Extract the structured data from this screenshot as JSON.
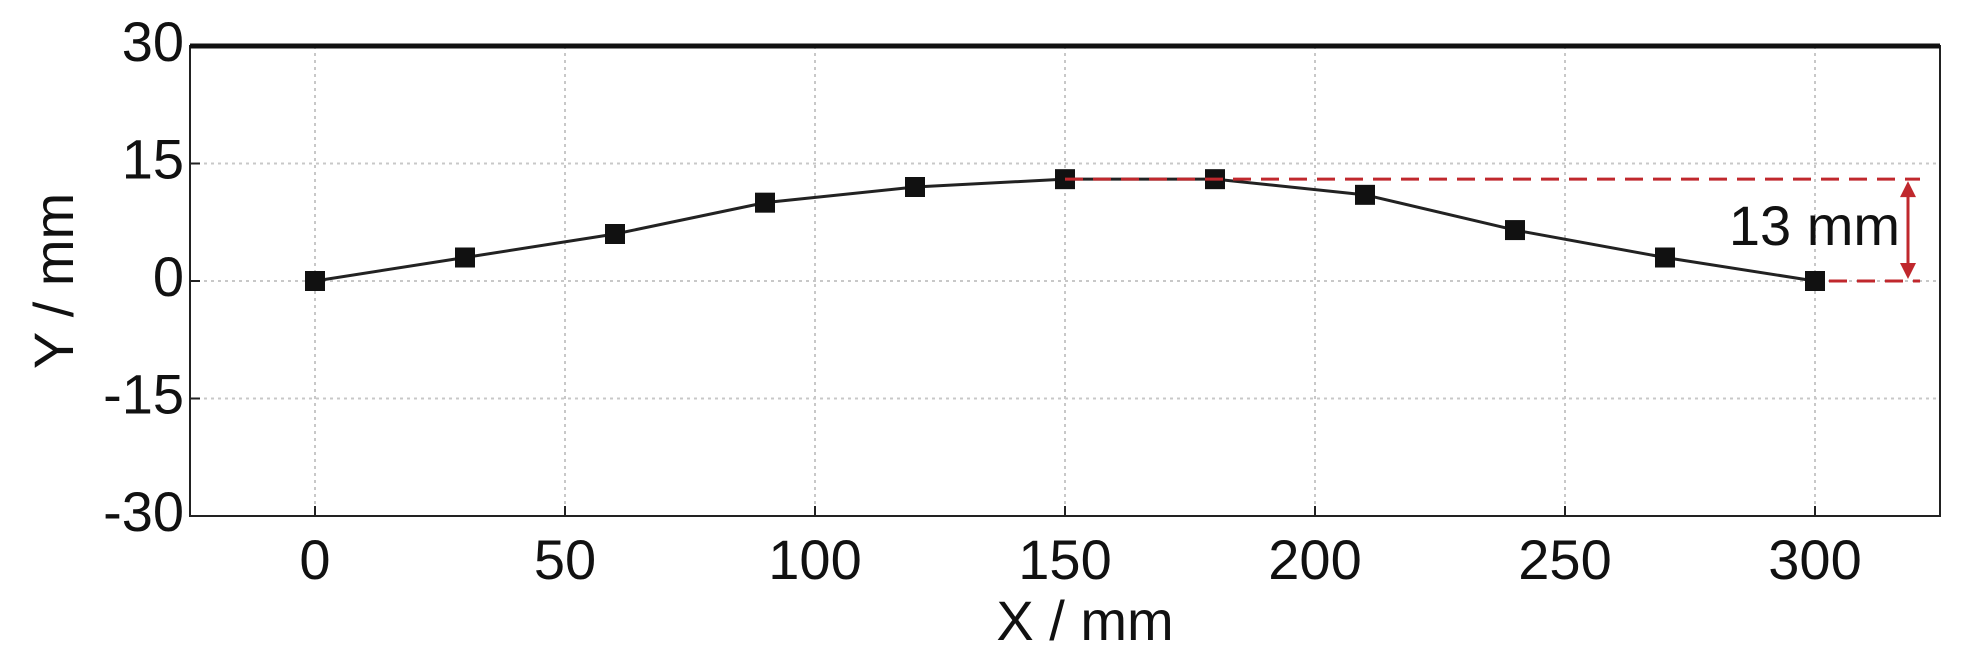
{
  "chart_data": {
    "type": "line",
    "x_label": "X / mm",
    "y_label": "Y / mm",
    "x": [
      0,
      30,
      60,
      90,
      120,
      150,
      180,
      210,
      240,
      270,
      300
    ],
    "series": [
      {
        "color": "#222222",
        "values": [
          0,
          3,
          6,
          10,
          12,
          13,
          13,
          11,
          6.5,
          3,
          0
        ]
      }
    ],
    "xlim": [
      -25,
      325
    ],
    "ylim": [
      -30,
      30
    ],
    "xticks": [
      0,
      50,
      100,
      150,
      200,
      250,
      300
    ],
    "yticks": [
      -30,
      -15,
      0,
      15,
      30
    ],
    "grid": true,
    "annotation": {
      "text": "13 mm",
      "color": "#c0282d"
    }
  }
}
